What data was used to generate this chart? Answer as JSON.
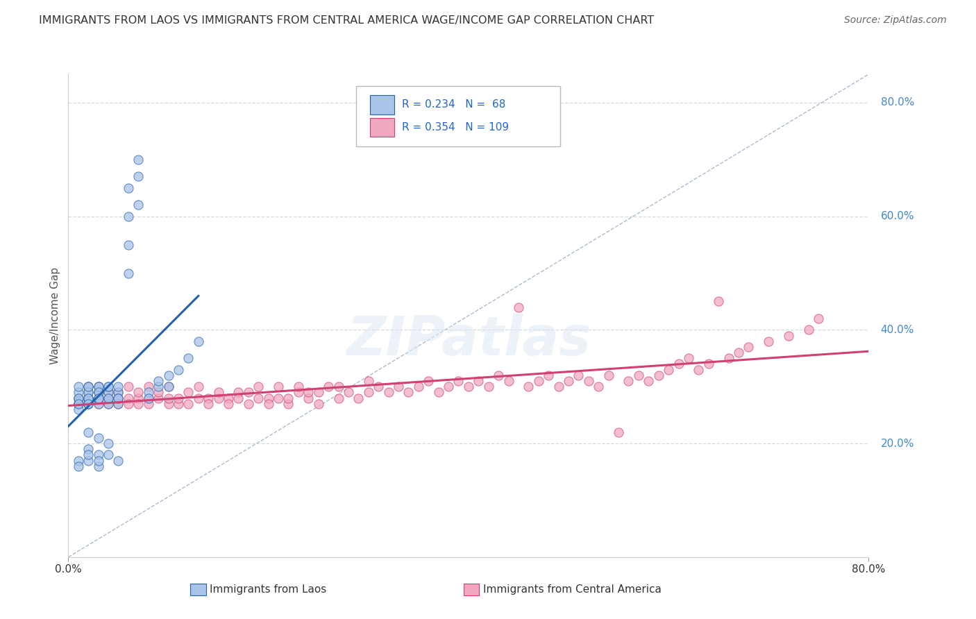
{
  "title": "IMMIGRANTS FROM LAOS VS IMMIGRANTS FROM CENTRAL AMERICA WAGE/INCOME GAP CORRELATION CHART",
  "source": "Source: ZipAtlas.com",
  "ylabel": "Wage/Income Gap",
  "right_yticks": [
    "80.0%",
    "60.0%",
    "40.0%",
    "20.0%"
  ],
  "right_ytick_vals": [
    0.8,
    0.6,
    0.4,
    0.2
  ],
  "series1_color": "#aac4e8",
  "series2_color": "#f0a8c0",
  "line1_color": "#2060b0",
  "line2_color": "#d04070",
  "background_color": "#ffffff",
  "grid_color": "#c8d0d8",
  "xmin": 0.0,
  "xmax": 0.8,
  "ymin": 0.0,
  "ymax": 0.85,
  "series1_x": [
    0.01,
    0.01,
    0.01,
    0.01,
    0.01,
    0.01,
    0.01,
    0.01,
    0.02,
    0.02,
    0.02,
    0.02,
    0.02,
    0.02,
    0.02,
    0.02,
    0.02,
    0.02,
    0.03,
    0.03,
    0.03,
    0.03,
    0.03,
    0.03,
    0.03,
    0.03,
    0.04,
    0.04,
    0.04,
    0.04,
    0.04,
    0.04,
    0.05,
    0.05,
    0.05,
    0.05,
    0.05,
    0.06,
    0.06,
    0.06,
    0.06,
    0.07,
    0.07,
    0.07,
    0.08,
    0.08,
    0.09,
    0.09,
    0.1,
    0.1,
    0.11,
    0.12,
    0.13,
    0.02,
    0.03,
    0.04,
    0.02,
    0.03,
    0.01,
    0.01,
    0.02,
    0.02,
    0.03,
    0.03,
    0.04,
    0.05
  ],
  "series1_y": [
    0.27,
    0.28,
    0.29,
    0.3,
    0.27,
    0.26,
    0.28,
    0.27,
    0.28,
    0.29,
    0.27,
    0.3,
    0.28,
    0.29,
    0.27,
    0.28,
    0.3,
    0.27,
    0.29,
    0.28,
    0.3,
    0.27,
    0.28,
    0.3,
    0.29,
    0.28,
    0.28,
    0.29,
    0.3,
    0.27,
    0.28,
    0.3,
    0.29,
    0.28,
    0.3,
    0.27,
    0.28,
    0.5,
    0.55,
    0.6,
    0.65,
    0.67,
    0.62,
    0.7,
    0.29,
    0.28,
    0.3,
    0.31,
    0.3,
    0.32,
    0.33,
    0.35,
    0.38,
    0.22,
    0.21,
    0.2,
    0.19,
    0.18,
    0.17,
    0.16,
    0.17,
    0.18,
    0.16,
    0.17,
    0.18,
    0.17
  ],
  "series2_x": [
    0.01,
    0.01,
    0.02,
    0.02,
    0.02,
    0.02,
    0.03,
    0.03,
    0.03,
    0.03,
    0.04,
    0.04,
    0.04,
    0.05,
    0.05,
    0.05,
    0.06,
    0.06,
    0.06,
    0.07,
    0.07,
    0.07,
    0.08,
    0.08,
    0.08,
    0.09,
    0.09,
    0.1,
    0.1,
    0.1,
    0.11,
    0.11,
    0.12,
    0.12,
    0.13,
    0.13,
    0.14,
    0.14,
    0.15,
    0.15,
    0.16,
    0.16,
    0.17,
    0.17,
    0.18,
    0.18,
    0.19,
    0.19,
    0.2,
    0.2,
    0.21,
    0.21,
    0.22,
    0.22,
    0.23,
    0.23,
    0.24,
    0.24,
    0.25,
    0.25,
    0.26,
    0.27,
    0.27,
    0.28,
    0.29,
    0.3,
    0.3,
    0.31,
    0.32,
    0.33,
    0.34,
    0.35,
    0.36,
    0.37,
    0.38,
    0.39,
    0.4,
    0.41,
    0.42,
    0.43,
    0.44,
    0.45,
    0.46,
    0.47,
    0.48,
    0.49,
    0.5,
    0.51,
    0.52,
    0.53,
    0.54,
    0.55,
    0.56,
    0.57,
    0.58,
    0.59,
    0.6,
    0.61,
    0.62,
    0.63,
    0.64,
    0.65,
    0.66,
    0.67,
    0.68,
    0.7,
    0.72,
    0.74,
    0.75
  ],
  "series2_y": [
    0.28,
    0.27,
    0.28,
    0.27,
    0.3,
    0.28,
    0.29,
    0.28,
    0.27,
    0.3,
    0.29,
    0.27,
    0.28,
    0.27,
    0.29,
    0.28,
    0.28,
    0.3,
    0.27,
    0.28,
    0.29,
    0.27,
    0.28,
    0.3,
    0.27,
    0.28,
    0.29,
    0.27,
    0.28,
    0.3,
    0.27,
    0.28,
    0.29,
    0.27,
    0.28,
    0.3,
    0.28,
    0.27,
    0.28,
    0.29,
    0.28,
    0.27,
    0.29,
    0.28,
    0.27,
    0.29,
    0.28,
    0.3,
    0.28,
    0.27,
    0.28,
    0.3,
    0.27,
    0.28,
    0.29,
    0.3,
    0.28,
    0.29,
    0.27,
    0.29,
    0.3,
    0.28,
    0.3,
    0.29,
    0.28,
    0.29,
    0.31,
    0.3,
    0.29,
    0.3,
    0.29,
    0.3,
    0.31,
    0.29,
    0.3,
    0.31,
    0.3,
    0.31,
    0.3,
    0.32,
    0.31,
    0.44,
    0.3,
    0.31,
    0.32,
    0.3,
    0.31,
    0.32,
    0.31,
    0.3,
    0.32,
    0.22,
    0.31,
    0.32,
    0.31,
    0.32,
    0.33,
    0.34,
    0.35,
    0.33,
    0.34,
    0.45,
    0.35,
    0.36,
    0.37,
    0.38,
    0.39,
    0.4,
    0.42
  ]
}
